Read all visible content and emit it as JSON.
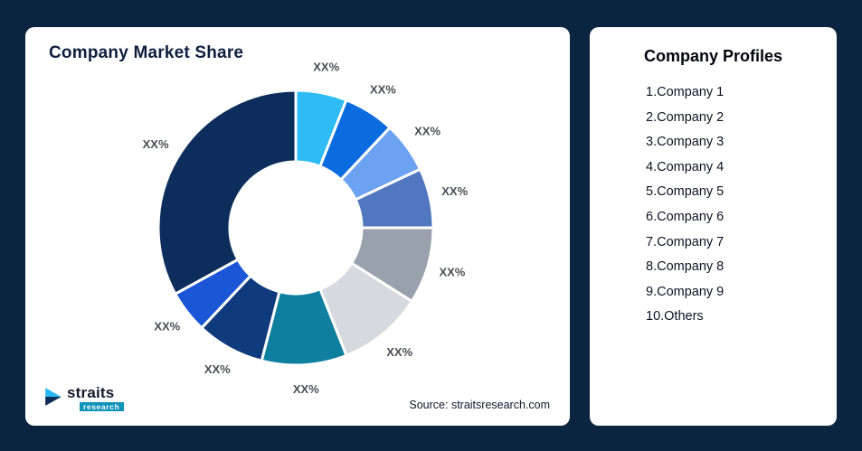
{
  "theme": {
    "background_color": "#0b2440",
    "card_color": "#ffffff"
  },
  "left_card": {
    "title": "Company Market Share",
    "source": "Source: straitsresearch.com",
    "logo": {
      "brand": "straits",
      "sub": "research",
      "glyph_top_color": "#29b9f2",
      "glyph_bottom_color": "#0c2b55"
    }
  },
  "right_card": {
    "title": "Company Profiles",
    "items": [
      "1.Company 1",
      "2.Company 2",
      "3.Company 3",
      "4.Company 4",
      "5.Company 5",
      "6.Company 6",
      "7.Company 7",
      "8.Company 8",
      "9.Company 9",
      "10.Others"
    ]
  },
  "chart_data": {
    "type": "pie",
    "subtype": "donut",
    "title": "Company Market Share",
    "categories": [
      "Company 1",
      "Company 2",
      "Company 3",
      "Company 4",
      "Company 5",
      "Company 6",
      "Company 7",
      "Company 8",
      "Company 9",
      "Others"
    ],
    "data_labels": [
      "XX%",
      "XX%",
      "XX%",
      "XX%",
      "XX%",
      "XX%",
      "XX%",
      "XX%",
      "XX%",
      "XX%"
    ],
    "values_pct_estimated": [
      6,
      6,
      6,
      7,
      9,
      10,
      10,
      8,
      5,
      33
    ],
    "colors": [
      "#2fbcf5",
      "#0b6ce0",
      "#6ba3f2",
      "#5077bf",
      "#99a1ad",
      "#d6d9dd",
      "#0e7f9f",
      "#0f3a7d",
      "#1a56d6",
      "#0d2e5c"
    ],
    "start_angle_deg": 0,
    "direction": "clockwise",
    "inner_radius_ratio": 0.48,
    "slice_gap_color": "#ffffff",
    "legend": "none",
    "source": "Source: straitsresearch.com"
  }
}
